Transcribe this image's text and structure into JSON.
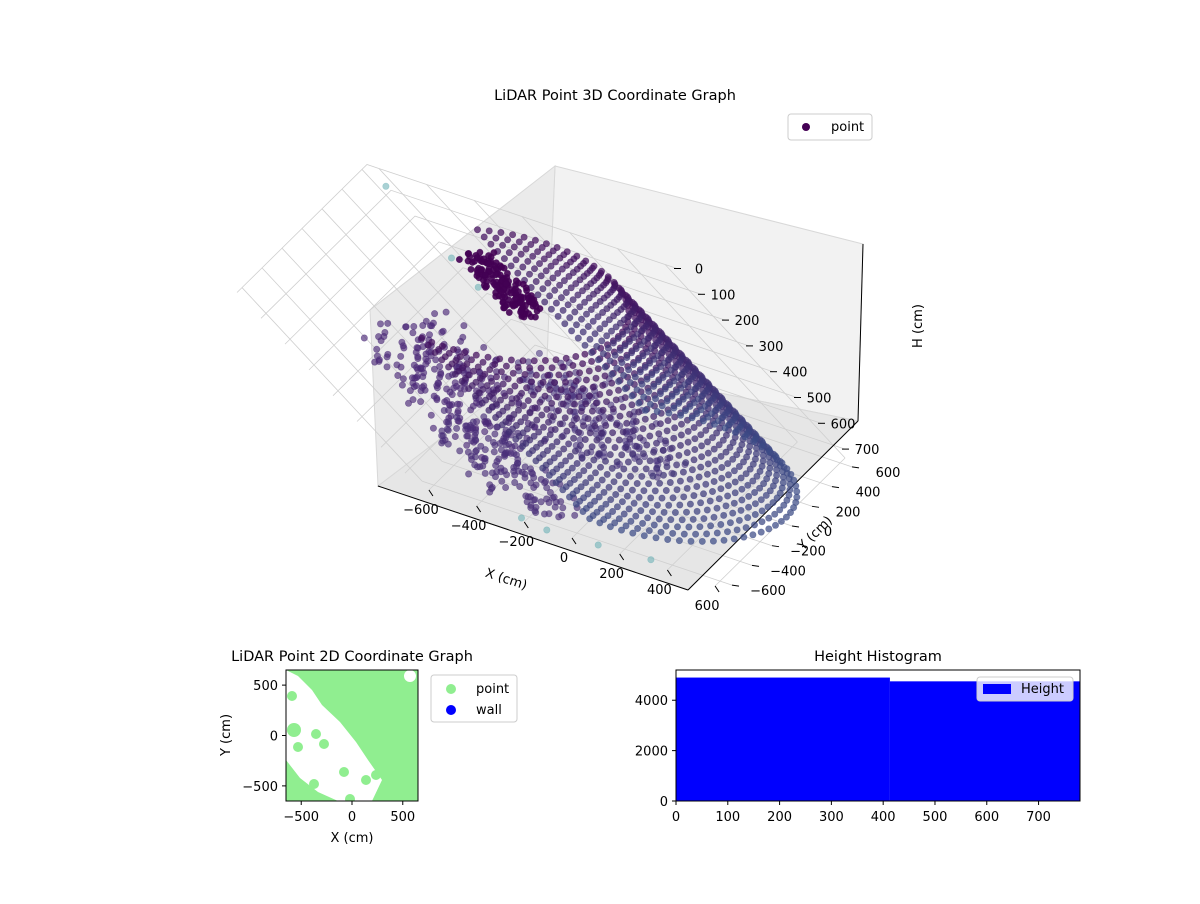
{
  "chart_data": [
    {
      "type": "scatter",
      "projection": "3d",
      "title": "LiDAR Point 3D Coordinate Graph",
      "xlabel": "X (cm)",
      "ylabel": "Y (cm)",
      "zlabel": "H (cm)",
      "xlim": [
        -650,
        650
      ],
      "ylim": [
        -650,
        650
      ],
      "zlim": [
        750,
        0
      ],
      "z_axis_inverted": true,
      "xticks": [
        -600,
        -400,
        -200,
        0,
        200,
        400,
        600
      ],
      "yticks": [
        -600,
        -400,
        -200,
        0,
        200,
        400,
        600
      ],
      "zticks": [
        0,
        100,
        200,
        300,
        400,
        500,
        600,
        700
      ],
      "grid": true,
      "legend_position": "top-right",
      "series": [
        {
          "name": "point",
          "color": "#440154",
          "colormap": "viridis",
          "description_points": [
            {
              "x": 560,
              "y": 280,
              "z": 60
            },
            {
              "x": 480,
              "y": 480,
              "z": 60
            },
            {
              "x": 300,
              "y": 620,
              "z": 60
            },
            {
              "x": 80,
              "y": 640,
              "z": 60
            },
            {
              "x": -150,
              "y": 560,
              "z": 60
            },
            {
              "x": -320,
              "y": 420,
              "z": 60
            },
            {
              "x": -420,
              "y": 360,
              "z": 60
            },
            {
              "x": 620,
              "y": 0,
              "z": 60
            },
            {
              "x": 560,
              "y": -220,
              "z": 60
            },
            {
              "x": 420,
              "y": -400,
              "z": 60
            },
            {
              "x": 220,
              "y": -520,
              "z": 60
            },
            {
              "x": 560,
              "y": 280,
              "z": 700
            },
            {
              "x": 480,
              "y": 480,
              "z": 700
            },
            {
              "x": 300,
              "y": 620,
              "z": 700
            },
            {
              "x": 620,
              "y": 0,
              "z": 700
            },
            {
              "x": 420,
              "y": -400,
              "z": 700
            },
            {
              "x": -300,
              "y": -250,
              "z": 300
            },
            {
              "x": -450,
              "y": -200,
              "z": 500
            },
            {
              "x": -500,
              "y": 100,
              "z": 600
            },
            {
              "x": -200,
              "y": -450,
              "z": 650
            },
            {
              "x": -100,
              "y": 300,
              "z": 120
            },
            {
              "x": -600,
              "y": 600,
              "z": 400
            },
            {
              "x": 100,
              "y": -620,
              "z": 750
            }
          ]
        }
      ]
    },
    {
      "type": "scatter",
      "title": "LiDAR Point 2D Coordinate Graph",
      "xlabel": "X (cm)",
      "ylabel": "Y (cm)",
      "xlim": [
        -650,
        650
      ],
      "ylim": [
        -650,
        650
      ],
      "xticks": [
        -500,
        0,
        500
      ],
      "yticks": [
        -500,
        0,
        500
      ],
      "legend_position": "outside-right",
      "series": [
        {
          "name": "point",
          "color": "#90ee90"
        },
        {
          "name": "wall",
          "color": "#0000ff"
        }
      ]
    },
    {
      "type": "bar",
      "title": "Height Histogram",
      "xlim": [
        0,
        780
      ],
      "ylim": [
        0,
        5200
      ],
      "xticks": [
        0,
        100,
        200,
        300,
        400,
        500,
        600,
        700
      ],
      "yticks": [
        0,
        2000,
        4000
      ],
      "legend_position": "top-right",
      "series": [
        {
          "name": "Height",
          "color": "#0000ff",
          "bins": [
            {
              "x0": 0,
              "x1": 413,
              "count": 4900
            },
            {
              "x0": 413,
              "x1": 780,
              "count": 4750
            }
          ]
        }
      ]
    }
  ]
}
